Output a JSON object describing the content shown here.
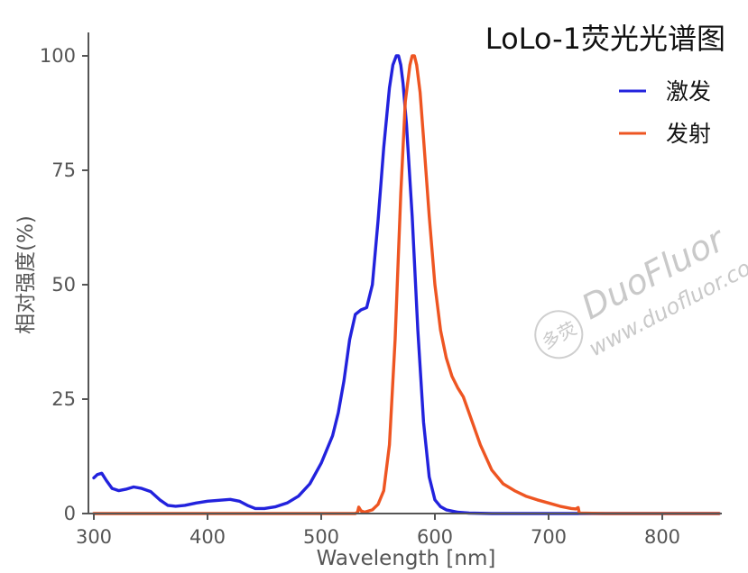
{
  "chart_data": {
    "type": "line",
    "title": "LoLo-1荧光光谱图",
    "xlabel": "Wavelength [nm]",
    "ylabel": "相对强度(%)",
    "xlim": [
      300,
      850
    ],
    "ylim": [
      0,
      100
    ],
    "xticks": [
      300,
      400,
      500,
      600,
      700,
      800
    ],
    "yticks": [
      0,
      25,
      50,
      75,
      100
    ],
    "grid": false,
    "legend_position": "top-right",
    "series": [
      {
        "name": "激发",
        "color": "#2222dd",
        "x": [
          300,
          303,
          307,
          311,
          316,
          322,
          328,
          335,
          342,
          350,
          358,
          365,
          372,
          380,
          390,
          400,
          410,
          420,
          428,
          435,
          442,
          450,
          460,
          470,
          480,
          490,
          500,
          510,
          515,
          520,
          525,
          530,
          535,
          540,
          545,
          550,
          555,
          560,
          563,
          566,
          568,
          570,
          572,
          575,
          580,
          585,
          590,
          595,
          600,
          605,
          610,
          620,
          630,
          650,
          700,
          750,
          800,
          850
        ],
        "y": [
          7.8,
          8.5,
          8.8,
          7.2,
          5.5,
          5.0,
          5.3,
          5.8,
          5.5,
          4.8,
          3.0,
          1.8,
          1.6,
          1.8,
          2.3,
          2.7,
          2.9,
          3.1,
          2.7,
          1.8,
          1.1,
          1.1,
          1.5,
          2.3,
          3.8,
          6.5,
          11.0,
          17.0,
          22.0,
          29.0,
          38.0,
          43.5,
          44.5,
          45.0,
          50.0,
          64.0,
          80.0,
          93.0,
          98.0,
          100.0,
          100.0,
          98.0,
          94.0,
          85.0,
          65.0,
          40.0,
          20.0,
          8.0,
          3.0,
          1.5,
          0.8,
          0.3,
          0.1,
          0,
          0,
          0,
          0,
          0
        ]
      },
      {
        "name": "发射",
        "color": "#ee5522",
        "x": [
          300,
          520,
          530,
          532,
          533,
          535,
          538,
          545,
          550,
          555,
          560,
          565,
          570,
          574,
          578,
          580,
          582,
          584,
          587,
          590,
          595,
          600,
          605,
          610,
          615,
          620,
          625,
          630,
          640,
          650,
          660,
          670,
          680,
          690,
          700,
          710,
          720,
          724,
          726,
          727,
          750,
          800,
          850
        ],
        "y": [
          0,
          0,
          0,
          0.3,
          1.4,
          0.6,
          0.3,
          0.8,
          2.0,
          5.0,
          15.0,
          38.0,
          70.0,
          90.0,
          98.0,
          100.0,
          100.0,
          98.0,
          92.0,
          82.0,
          65.0,
          50.0,
          40.0,
          34.0,
          30.0,
          27.5,
          25.5,
          22.0,
          15.0,
          9.5,
          6.5,
          5.0,
          3.8,
          3.0,
          2.3,
          1.6,
          1.1,
          1.0,
          1.3,
          0.1,
          0,
          0,
          0
        ]
      }
    ]
  },
  "watermark": {
    "logo_text": "多荧",
    "brand": "DuoFluor",
    "url": "www.duofluor.com"
  }
}
